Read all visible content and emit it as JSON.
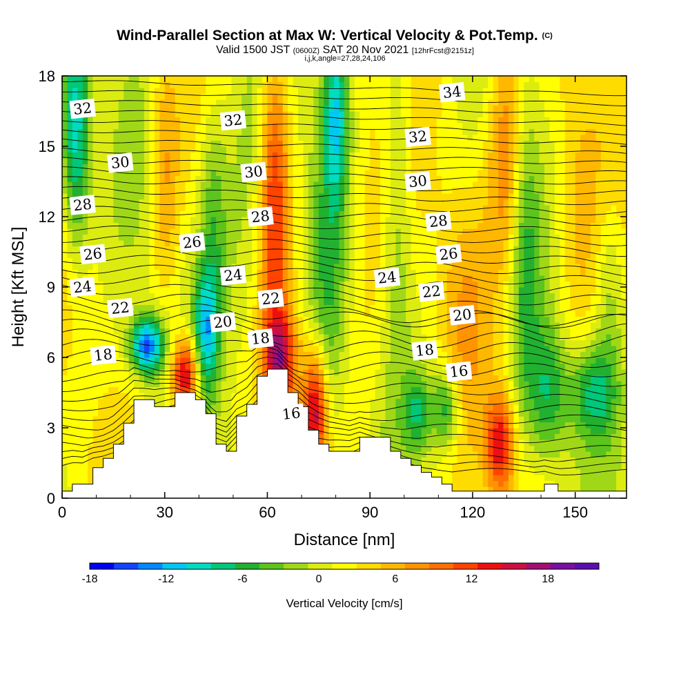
{
  "chart_data": {
    "type": "heatmap",
    "title": "Wind-Parallel Section at Max W: Vertical Velocity & Pot.Temp.",
    "title_suffix": "(C)",
    "subtitle_parts": [
      "Valid 1500 JST",
      "(0600Z)",
      "SAT 20 Nov 2021",
      "[12hrFcst@2151z]"
    ],
    "params": "i,j,k,angle=27,28,24,106",
    "xlabel": "Distance [nm]",
    "ylabel": "Height [Kft MSL]",
    "xlim": [
      0,
      165
    ],
    "ylim": [
      0,
      18
    ],
    "xticks": [
      0,
      30,
      60,
      90,
      120,
      150
    ],
    "yticks": [
      0,
      3,
      6,
      9,
      12,
      15,
      18
    ],
    "colorbar": {
      "label": "Vertical Velocity [cm/s]",
      "ticks": [
        -18,
        -12,
        -6,
        0,
        6,
        12,
        18
      ],
      "range": [
        -18,
        22
      ],
      "colors": [
        "#0000ee",
        "#1144ff",
        "#0088ff",
        "#00c8ee",
        "#00dcc0",
        "#00c878",
        "#22b030",
        "#5cc41c",
        "#a0d818",
        "#dcec10",
        "#ffff00",
        "#ffdc00",
        "#ffb800",
        "#ff9400",
        "#ff6e00",
        "#ff4400",
        "#ee1010",
        "#cc1040",
        "#a01070",
        "#7a10a0",
        "#5a10b0"
      ]
    },
    "terrain": [
      [
        0,
        0.3
      ],
      [
        3,
        0.6
      ],
      [
        6,
        0.6
      ],
      [
        9,
        1.3
      ],
      [
        12,
        1.7
      ],
      [
        15,
        2.3
      ],
      [
        18,
        3.2
      ],
      [
        21,
        4.2
      ],
      [
        27,
        3.9
      ],
      [
        33,
        4.5
      ],
      [
        39,
        4.2
      ],
      [
        42,
        3.6
      ],
      [
        45,
        2.3
      ],
      [
        48,
        2.0
      ],
      [
        51,
        3.5
      ],
      [
        54,
        4.0
      ],
      [
        57,
        5.2
      ],
      [
        60,
        5.5
      ],
      [
        63,
        5.5
      ],
      [
        66,
        4.5
      ],
      [
        69,
        3.9
      ],
      [
        72,
        2.9
      ],
      [
        75,
        2.3
      ],
      [
        78,
        2.0
      ],
      [
        84,
        2.0
      ],
      [
        87,
        2.6
      ],
      [
        96,
        2.0
      ],
      [
        99,
        1.7
      ],
      [
        102,
        1.4
      ],
      [
        105,
        1.1
      ],
      [
        108,
        0.9
      ],
      [
        111,
        0.6
      ],
      [
        114,
        0.3
      ],
      [
        117,
        0.3
      ],
      [
        120,
        0.3
      ],
      [
        132,
        0.3
      ],
      [
        138,
        0.3
      ],
      [
        141,
        0.6
      ],
      [
        145,
        0.3
      ],
      [
        150,
        0.3
      ],
      [
        165,
        0.3
      ]
    ],
    "velocity_features": [
      {
        "x": 4,
        "y": 15.5,
        "value": -12,
        "sx": 3,
        "sy": 3.5
      },
      {
        "x": 25,
        "y": 6.5,
        "value": -16,
        "sx": 3.5,
        "sy": 0.9
      },
      {
        "x": 36,
        "y": 5.2,
        "value": 16,
        "sx": 3,
        "sy": 1.2
      },
      {
        "x": 42,
        "y": 7.0,
        "value": -10,
        "sx": 2.5,
        "sy": 1.8
      },
      {
        "x": 44,
        "y": 12.0,
        "value": -6,
        "sx": 3,
        "sy": 4
      },
      {
        "x": 30,
        "y": 14.0,
        "value": 6,
        "sx": 3,
        "sy": 4
      },
      {
        "x": 54,
        "y": 12.0,
        "value": -4,
        "sx": 5,
        "sy": 6
      },
      {
        "x": 62,
        "y": 13.0,
        "value": 10,
        "sx": 3,
        "sy": 5
      },
      {
        "x": 64,
        "y": 5.8,
        "value": 12,
        "sx": 3.5,
        "sy": 1.5
      },
      {
        "x": 74,
        "y": 3.8,
        "value": 14,
        "sx": 2.5,
        "sy": 1.8
      },
      {
        "x": 80,
        "y": 16.5,
        "value": -10,
        "sx": 2.5,
        "sy": 2.5
      },
      {
        "x": 78,
        "y": 9.0,
        "value": -5,
        "sx": 4,
        "sy": 5
      },
      {
        "x": 88,
        "y": 11.0,
        "value": 3,
        "sx": 6,
        "sy": 6
      },
      {
        "x": 98,
        "y": 14.0,
        "value": -5,
        "sx": 3,
        "sy": 6
      },
      {
        "x": 104,
        "y": 3.7,
        "value": -7,
        "sx": 2.5,
        "sy": 1.2
      },
      {
        "x": 112,
        "y": 3.8,
        "value": -9,
        "sx": 3,
        "sy": 1.3
      },
      {
        "x": 130,
        "y": 15.0,
        "value": 8,
        "sx": 4,
        "sy": 4
      },
      {
        "x": 128,
        "y": 2.3,
        "value": 12,
        "sx": 3,
        "sy": 1.5
      },
      {
        "x": 135,
        "y": 11.0,
        "value": -6,
        "sx": 3,
        "sy": 5
      },
      {
        "x": 142,
        "y": 4.5,
        "value": -7,
        "sx": 4,
        "sy": 2
      },
      {
        "x": 155,
        "y": 4.5,
        "value": -8,
        "sx": 5,
        "sy": 1.5
      },
      {
        "x": 150,
        "y": 12.0,
        "value": 4,
        "sx": 5,
        "sy": 5
      },
      {
        "x": 160,
        "y": 9.0,
        "value": -4,
        "sx": 3,
        "sy": 3
      },
      {
        "x": 118,
        "y": 8.0,
        "value": 3,
        "sx": 5,
        "sy": 4
      }
    ],
    "theta_contours": [
      {
        "value": 16,
        "label_x": 116,
        "label_y": 5.4
      },
      {
        "value": 18,
        "label_x": 106,
        "label_y": 6.3
      },
      {
        "value": 20,
        "label_x": 117,
        "label_y": 7.8
      },
      {
        "value": 22,
        "label_x": 108,
        "label_y": 8.8
      },
      {
        "value": 24,
        "label_x": 95,
        "label_y": 9.4
      },
      {
        "value": 26,
        "label_x": 113,
        "label_y": 10.4
      },
      {
        "value": 28,
        "label_x": 110,
        "label_y": 11.8
      },
      {
        "value": 30,
        "label_x": 104,
        "label_y": 13.5
      },
      {
        "value": 32,
        "label_x": 104,
        "label_y": 15.4
      },
      {
        "value": 34,
        "label_x": 114,
        "label_y": 17.3
      }
    ],
    "contour_labels": [
      {
        "text": "32",
        "x": 6,
        "y": 16.6
      },
      {
        "text": "32",
        "x": 50,
        "y": 16.1
      },
      {
        "text": "32",
        "x": 104,
        "y": 15.4
      },
      {
        "text": "34",
        "x": 114,
        "y": 17.3
      },
      {
        "text": "30",
        "x": 17,
        "y": 14.3
      },
      {
        "text": "30",
        "x": 56,
        "y": 13.9
      },
      {
        "text": "30",
        "x": 104,
        "y": 13.5
      },
      {
        "text": "28",
        "x": 6,
        "y": 12.5
      },
      {
        "text": "28",
        "x": 58,
        "y": 12.0
      },
      {
        "text": "28",
        "x": 110,
        "y": 11.8
      },
      {
        "text": "26",
        "x": 9,
        "y": 10.4
      },
      {
        "text": "26",
        "x": 38,
        "y": 10.9
      },
      {
        "text": "26",
        "x": 113,
        "y": 10.4
      },
      {
        "text": "24",
        "x": 6,
        "y": 9.0
      },
      {
        "text": "24",
        "x": 50,
        "y": 9.5
      },
      {
        "text": "24",
        "x": 95,
        "y": 9.4
      },
      {
        "text": "22",
        "x": 17,
        "y": 8.1
      },
      {
        "text": "22",
        "x": 61,
        "y": 8.5
      },
      {
        "text": "22",
        "x": 108,
        "y": 8.8
      },
      {
        "text": "20",
        "x": 47,
        "y": 7.5
      },
      {
        "text": "20",
        "x": 117,
        "y": 7.8
      },
      {
        "text": "18",
        "x": 12,
        "y": 6.1
      },
      {
        "text": "18",
        "x": 58,
        "y": 6.8
      },
      {
        "text": "18",
        "x": 106,
        "y": 6.3
      },
      {
        "text": "16",
        "x": 67,
        "y": 3.6
      },
      {
        "text": "16",
        "x": 116,
        "y": 5.4
      }
    ]
  }
}
